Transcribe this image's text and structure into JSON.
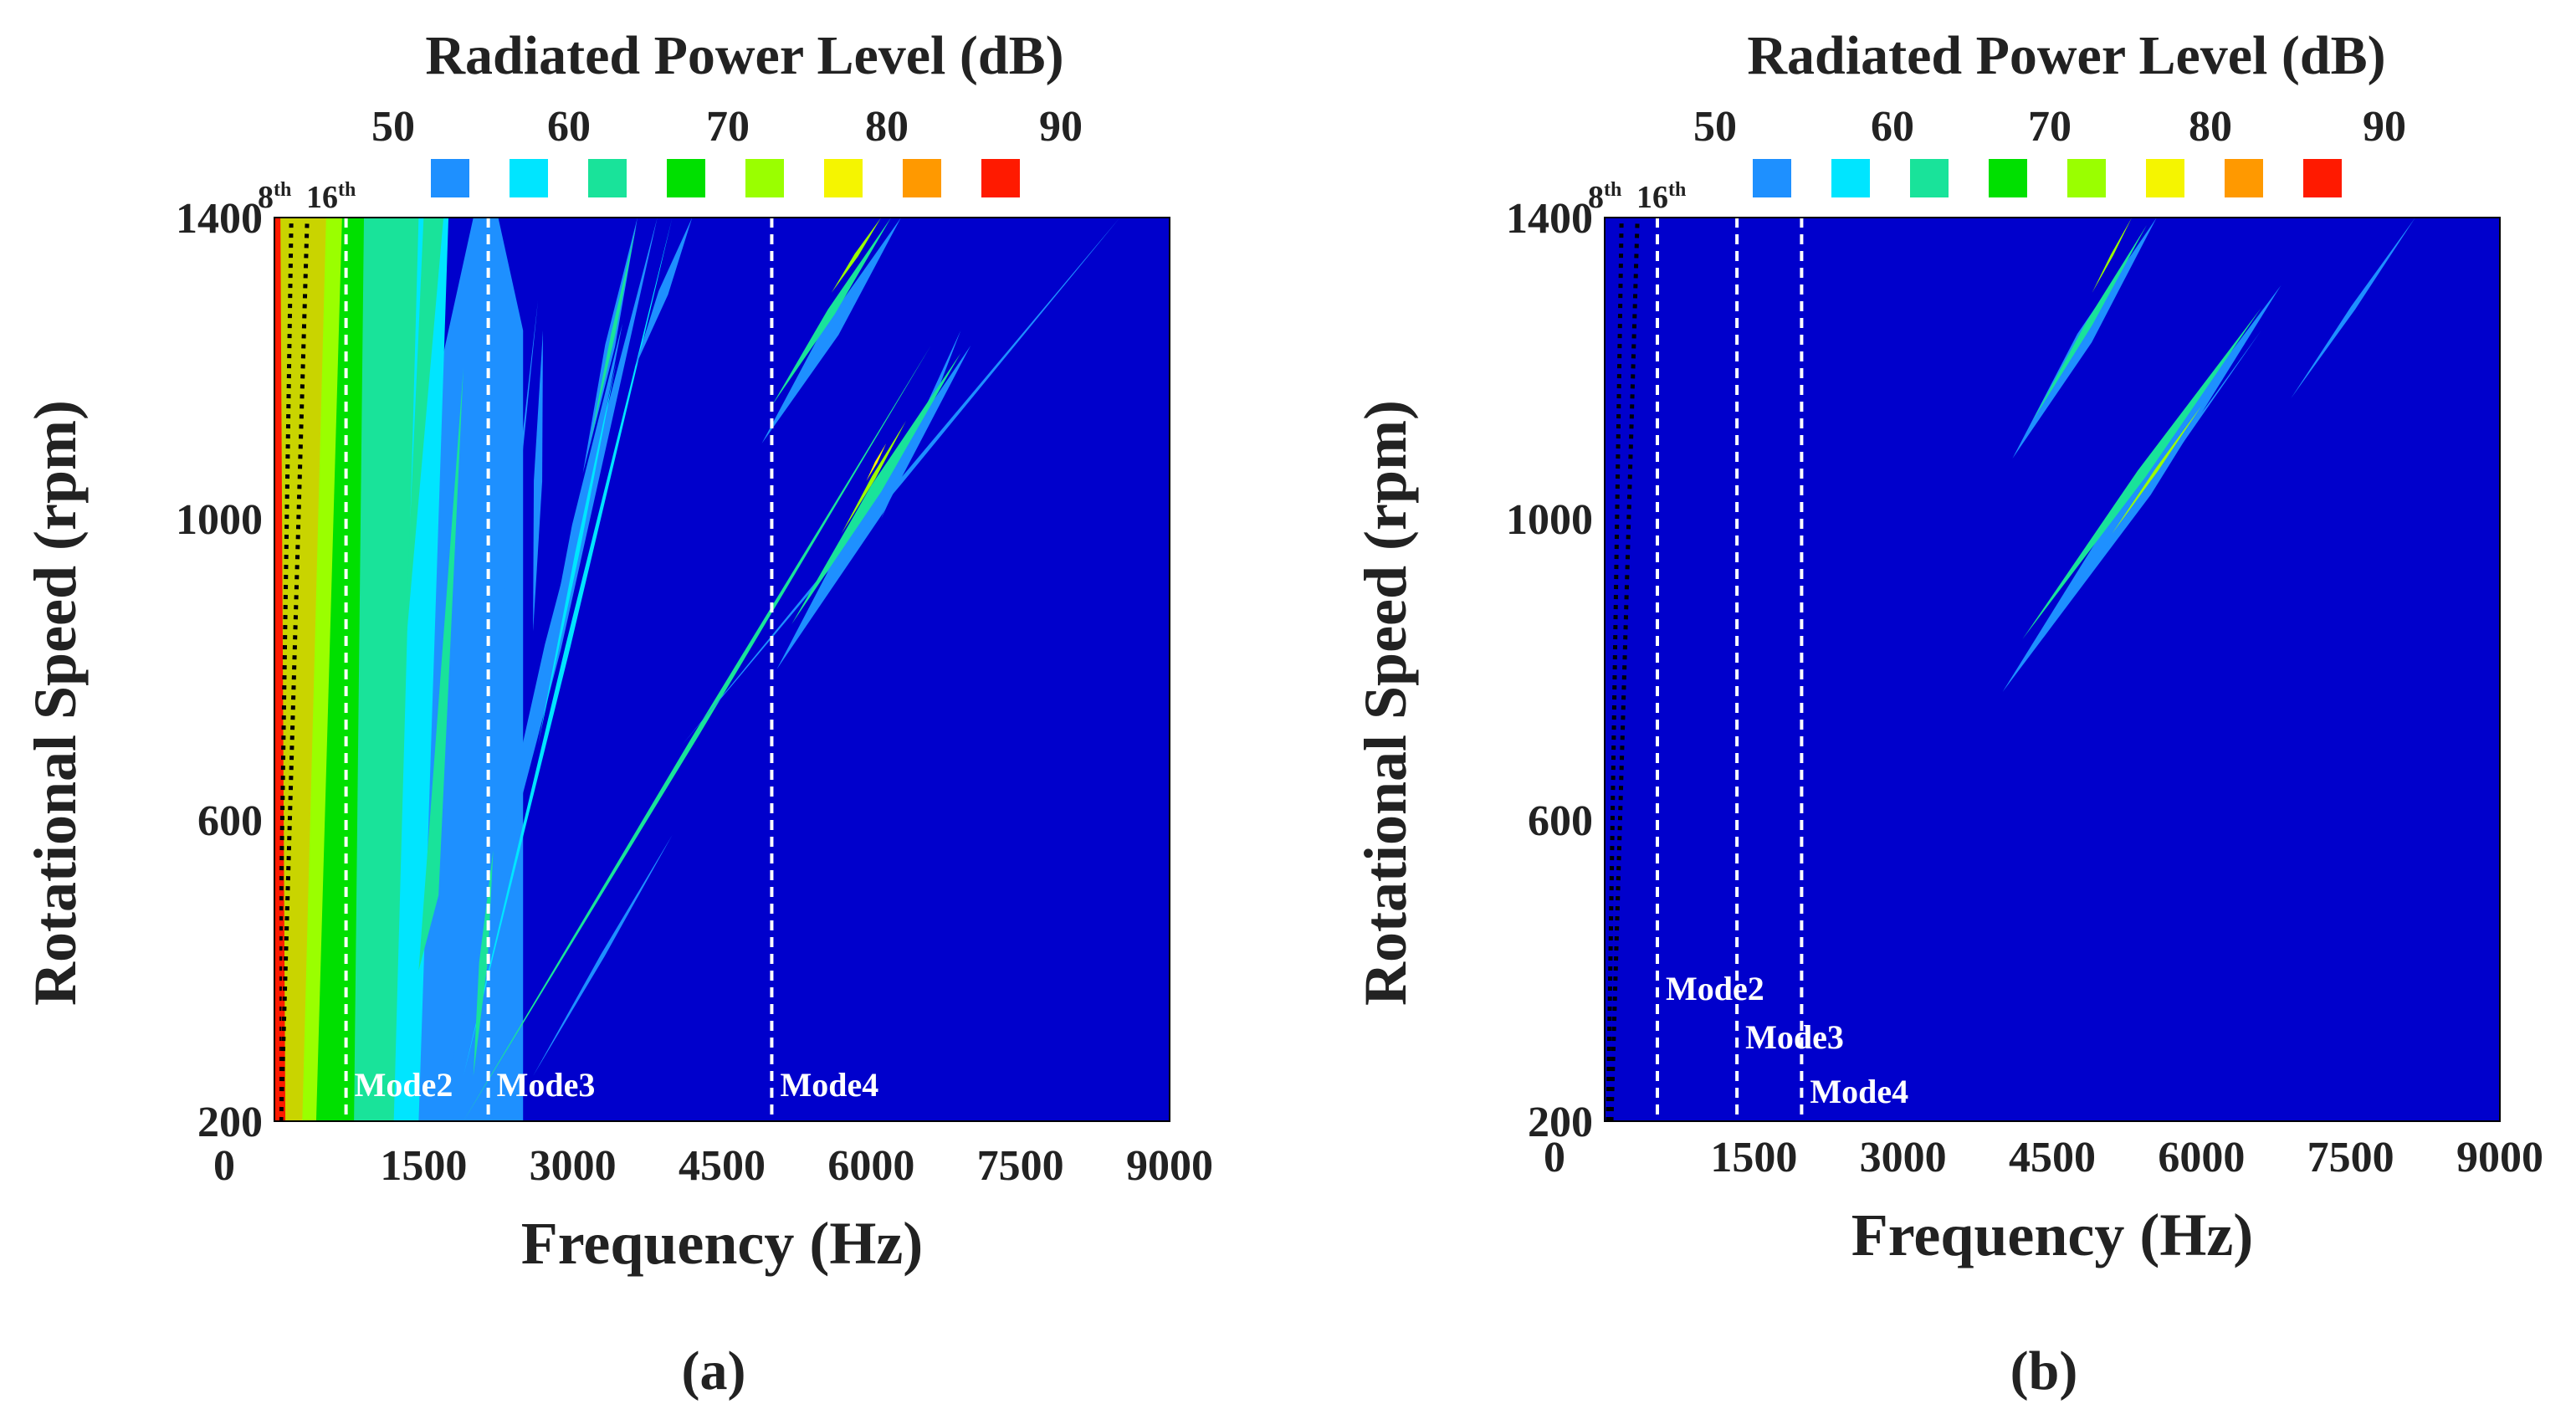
{
  "chart_data": [
    {
      "type": "heatmap",
      "panel_label": "(a)",
      "title": "Radiated Power Level (dB)",
      "xlabel": "Frequency (Hz)",
      "ylabel": "Rotational Speed (rpm)",
      "xlim": [
        0,
        9000
      ],
      "ylim": [
        200,
        1400
      ],
      "xticks": [
        "0",
        "1500",
        "3000",
        "4500",
        "6000",
        "7500",
        "9000"
      ],
      "yticks": [
        "200",
        "600",
        "1000",
        "1400"
      ],
      "colorbar": {
        "ticks": [
          "50",
          "60",
          "70",
          "80",
          "90"
        ],
        "levels": [
          50,
          55,
          60,
          65,
          70,
          75,
          80,
          85,
          90
        ],
        "colors": [
          "#0000cc",
          "#1e90ff",
          "#00e5ff",
          "#19e39a",
          "#00e000",
          "#9aff00",
          "#f5f500",
          "#ff9900",
          "#ff1a00"
        ]
      },
      "background_color": "#0000cc",
      "order_lines": [
        {
          "label": "8",
          "sup": "th",
          "order": 8
        },
        {
          "label": "16",
          "sup": "th",
          "order": 16
        }
      ],
      "mode_lines": [
        {
          "label": "Mode2",
          "frequency": 720
        },
        {
          "label": "Mode3",
          "frequency": 2150
        },
        {
          "label": "Mode4",
          "frequency": 5000
        }
      ],
      "ridges": [
        {
          "from": [
            2700,
            1250
          ],
          "to": [
            2600,
            850
          ],
          "width": 10,
          "color": "#1e90ff"
        },
        {
          "from": [
            1750,
            260
          ],
          "to": [
            3850,
            1400
          ],
          "width": 20,
          "color": "#1e90ff"
        },
        {
          "from": [
            1900,
            260
          ],
          "to": [
            4000,
            1400
          ],
          "width": 6,
          "color": "#00e5ff"
        },
        {
          "from": [
            2200,
            560
          ],
          "to": [
            2000,
            260
          ],
          "width": 10,
          "color": "#19e39a"
        },
        {
          "from": [
            2600,
            720
          ],
          "to": [
            3500,
            1260
          ],
          "width": 14,
          "color": "#1e90ff"
        },
        {
          "from": [
            2650,
            700
          ],
          "to": [
            3440,
            1210
          ],
          "width": 5,
          "color": "#00e5ff"
        },
        {
          "from": [
            3620,
            1200
          ],
          "to": [
            4200,
            1400
          ],
          "width": 12,
          "color": "#1e90ff"
        },
        {
          "from": [
            3100,
            1060
          ],
          "to": [
            3650,
            1400
          ],
          "width": 12,
          "color": "#1e90ff"
        },
        {
          "from": [
            3170,
            1100
          ],
          "to": [
            3640,
            1390
          ],
          "width": 5,
          "color": "#19e39a"
        },
        {
          "from": [
            1900,
            200
          ],
          "to": [
            6600,
            1230
          ],
          "width": 6,
          "color": "#19e39a"
        },
        {
          "from": [
            2600,
            260
          ],
          "to": [
            4000,
            580
          ],
          "width": 5,
          "color": "#1e90ff"
        },
        {
          "from": [
            4100,
            700
          ],
          "to": [
            8500,
            1400
          ],
          "width": 5,
          "color": "#1e90ff"
        },
        {
          "from": [
            6100,
            1000
          ],
          "to": [
            6900,
            1250
          ],
          "width": 8,
          "color": "#1e90ff"
        },
        {
          "from": [
            4900,
            1100
          ],
          "to": [
            6300,
            1400
          ],
          "width": 20,
          "color": "#1e90ff"
        },
        {
          "from": [
            5000,
            1150
          ],
          "to": [
            6200,
            1400
          ],
          "width": 10,
          "color": "#19e39a"
        },
        {
          "from": [
            5600,
            1300
          ],
          "to": [
            6100,
            1400
          ],
          "width": 5,
          "color": "#9aff00"
        },
        {
          "from": [
            5050,
            800
          ],
          "to": [
            7000,
            1230
          ],
          "width": 26,
          "color": "#1e90ff"
        },
        {
          "from": [
            5200,
            860
          ],
          "to": [
            6900,
            1220
          ],
          "width": 14,
          "color": "#19e39a"
        },
        {
          "from": [
            5700,
            980
          ],
          "to": [
            6350,
            1130
          ],
          "width": 5,
          "color": "#9aff00"
        },
        {
          "from": [
            5950,
            1050
          ],
          "to": [
            6150,
            1100
          ],
          "width": 3,
          "color": "#f5f500"
        }
      ]
    },
    {
      "type": "heatmap",
      "panel_label": "(b)",
      "title": "Radiated Power Level (dB)",
      "xlabel": "Frequency (Hz)",
      "ylabel": "Rotational Speed (rpm)",
      "xlim": [
        0,
        9000
      ],
      "ylim": [
        200,
        1400
      ],
      "xticks": [
        "0",
        "1500",
        "3000",
        "4500",
        "6000",
        "7500",
        "9000"
      ],
      "yticks": [
        "200",
        "600",
        "1000",
        "1400"
      ],
      "colorbar": {
        "ticks": [
          "50",
          "60",
          "70",
          "80",
          "90"
        ],
        "levels": [
          50,
          55,
          60,
          65,
          70,
          75,
          80,
          85,
          90
        ],
        "colors": [
          "#0000cc",
          "#1e90ff",
          "#00e5ff",
          "#19e39a",
          "#00e000",
          "#9aff00",
          "#f5f500",
          "#ff9900",
          "#ff1a00"
        ]
      },
      "background_color": "#0000cc",
      "order_lines": [
        {
          "label": "8",
          "sup": "th",
          "order": 8
        },
        {
          "label": "16",
          "sup": "th",
          "order": 16
        }
      ],
      "mode_lines": [
        {
          "label": "Mode2",
          "frequency": 530
        },
        {
          "label": "Mode3",
          "frequency": 1330
        },
        {
          "label": "Mode4",
          "frequency": 1980
        }
      ],
      "ridges": [
        {
          "from": [
            4100,
            1080
          ],
          "to": [
            5550,
            1400
          ],
          "width": 20,
          "color": "#1e90ff"
        },
        {
          "from": [
            4300,
            1130
          ],
          "to": [
            5450,
            1390
          ],
          "width": 8,
          "color": "#19e39a"
        },
        {
          "from": [
            4900,
            1300
          ],
          "to": [
            5300,
            1400
          ],
          "width": 3,
          "color": "#9aff00"
        },
        {
          "from": [
            4000,
            770
          ],
          "to": [
            6800,
            1310
          ],
          "width": 26,
          "color": "#1e90ff"
        },
        {
          "from": [
            4200,
            840
          ],
          "to": [
            6600,
            1280
          ],
          "width": 12,
          "color": "#19e39a"
        },
        {
          "from": [
            5100,
            980
          ],
          "to": [
            6000,
            1150
          ],
          "width": 4,
          "color": "#9aff00"
        },
        {
          "from": [
            4400,
            840
          ],
          "to": [
            6600,
            1250
          ],
          "width": 4,
          "color": "#1e90ff"
        },
        {
          "from": [
            6900,
            1160
          ],
          "to": [
            8150,
            1400
          ],
          "width": 6,
          "color": "#1e90ff"
        }
      ]
    }
  ]
}
